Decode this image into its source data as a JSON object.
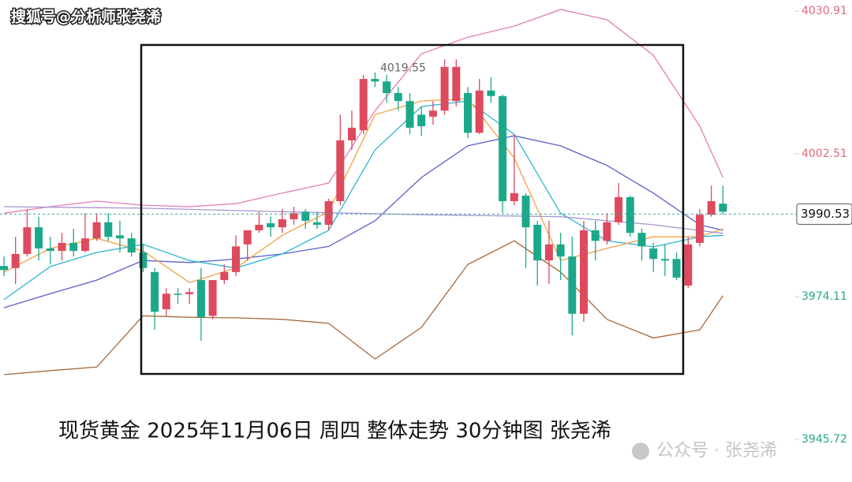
{
  "chart_data": {
    "type": "candlestick",
    "title": "搜狐号@分析师张尧浠",
    "caption": "现货黄金 2025年11月06日 周四 整体走势 30分钟图 张尧浠",
    "watermark": "公众号 · 张尧浠",
    "ylim": [
      3937.25,
      4033.1
    ],
    "yticks": [
      4030.91,
      4002.51,
      3974.11,
      3945.72
    ],
    "last_price": 3990.53,
    "max_marker": 4019.55,
    "up_color": "#dd4a5e",
    "down_color": "#1ba88a",
    "open": [
      3980.2,
      3979.8,
      3982.6,
      3987.9,
      3983.7,
      3983.2,
      3984.8,
      3983.2,
      3985.7,
      3988.9,
      3986.3,
      3985.7,
      3982.9,
      3979.0,
      3971.6,
      3974.7,
      3974.6,
      3977.4,
      3970.3,
      3977.4,
      3979.0,
      3984.5,
      3987.3,
      3988.7,
      3987.9,
      3989.5,
      3991.0,
      3988.9,
      3988.4,
      3993.1,
      4005.2,
      4007.2,
      4017.4,
      4016.9,
      4014.6,
      4013.0,
      4010.3,
      4009.9,
      4011.1,
      4013.0,
      4014.6,
      4006.7,
      4015.1,
      4014.0,
      3993.1,
      3994.2,
      3988.4,
      3981.3,
      3984.5,
      3982.1,
      3970.7,
      3987.3,
      3985.2,
      3988.9,
      3993.9,
      3986.8,
      3983.7,
      3981.6,
      3981.6,
      3976.3,
      3984.8,
      3990.4,
      3992.6
    ],
    "high": [
      3982.1,
      3986.0,
      3991.5,
      3990.0,
      3986.0,
      3986.8,
      3987.6,
      3990.7,
      3990.7,
      3990.7,
      3989.2,
      3986.8,
      3984.5,
      3979.8,
      3975.8,
      3975.8,
      3975.8,
      3979.8,
      3977.4,
      3980.5,
      3986.3,
      3987.3,
      3991.0,
      3990.0,
      3991.5,
      3992.0,
      3991.5,
      3991.0,
      3993.6,
      4010.3,
      4011.1,
      4018.2,
      4018.7,
      4018.2,
      4015.8,
      4014.6,
      4011.9,
      4013.0,
      4021.3,
      4021.3,
      4015.8,
      4017.4,
      4017.7,
      4014.3,
      4006.4,
      3994.7,
      3989.2,
      3989.2,
      3986.8,
      3986.0,
      3989.2,
      3989.2,
      3990.7,
      3996.7,
      3994.2,
      3987.6,
      3984.8,
      3984.5,
      3982.9,
      3986.0,
      3991.5,
      3996.2,
      3996.2
    ],
    "low": [
      3978.2,
      3976.6,
      3982.1,
      3981.3,
      3980.5,
      3981.3,
      3982.1,
      3982.9,
      3985.2,
      3985.2,
      3982.9,
      3982.1,
      3979.0,
      3967.5,
      3970.3,
      3972.7,
      3972.7,
      3965.3,
      3969.6,
      3976.6,
      3978.2,
      3981.3,
      3986.8,
      3986.0,
      3986.8,
      3988.4,
      3987.6,
      3987.6,
      3987.3,
      3992.3,
      4003.3,
      4006.4,
      4015.8,
      4012.7,
      4011.1,
      4006.4,
      4006.1,
      4008.3,
      4010.3,
      4011.9,
      4005.6,
      4006.4,
      4012.7,
      3990.7,
      3992.3,
      3979.8,
      3976.3,
      3976.6,
      3977.4,
      3966.4,
      3969.1,
      3981.3,
      3984.5,
      3988.4,
      3986.0,
      3981.3,
      3979.0,
      3978.2,
      3977.4,
      3975.8,
      3984.1,
      3990.0,
      3990.4
    ],
    "close": [
      3979.4,
      3982.6,
      3987.9,
      3983.7,
      3983.2,
      3984.8,
      3983.2,
      3985.7,
      3988.9,
      3986.0,
      3985.7,
      3982.9,
      3979.8,
      3971.1,
      3974.7,
      3974.6,
      3975.0,
      3970.0,
      3977.4,
      3979.0,
      3984.1,
      3987.3,
      3988.4,
      3987.9,
      3989.5,
      3990.7,
      3989.2,
      3988.4,
      3993.1,
      4005.2,
      4007.7,
      4017.4,
      4016.9,
      4014.6,
      4013.0,
      4007.7,
      4008.0,
      4011.1,
      4019.8,
      4019.8,
      4006.7,
      4015.1,
      4014.0,
      3993.1,
      3994.7,
      3987.9,
      3981.3,
      3984.5,
      3982.1,
      3970.7,
      3987.3,
      3985.2,
      3988.9,
      3993.9,
      3986.8,
      3984.1,
      3981.6,
      3981.3,
      3977.9,
      3984.5,
      3990.4,
      3993.1,
      3991.0
    ],
    "series": [
      {
        "color": "#e27db3",
        "x": [
          0,
          4,
          8,
          12,
          16,
          20,
          24,
          28,
          32,
          36,
          40,
          44,
          48,
          52,
          56,
          60,
          62
        ],
        "values": [
          3990.7,
          3992.0,
          3993.1,
          3992.3,
          3992.0,
          3992.6,
          3994.7,
          3996.7,
          4011.1,
          4022.4,
          4025.7,
          4027.9,
          4031.2,
          4029.2,
          4022.1,
          4008.0,
          3997.8
        ]
      },
      {
        "color": "#a8683a",
        "x": [
          0,
          4,
          8,
          12,
          16,
          20,
          24,
          28,
          32,
          36,
          40,
          44,
          48,
          52,
          56,
          60,
          62
        ],
        "values": [
          3958.6,
          3959.4,
          3960.1,
          3970.3,
          3970.0,
          3969.9,
          3969.6,
          3968.8,
          3961.7,
          3968.0,
          3980.5,
          3985.2,
          3979.0,
          3969.6,
          3965.9,
          3967.5,
          3974.3
        ]
      },
      {
        "color": "#5b5fcc",
        "x": [
          0,
          4,
          8,
          12,
          16,
          20,
          24,
          28,
          32,
          36,
          40,
          44,
          48,
          52,
          56,
          60,
          62
        ],
        "values": [
          3971.9,
          3974.7,
          3977.4,
          3981.3,
          3980.9,
          3981.6,
          3982.6,
          3984.1,
          3989.2,
          3997.8,
          4004.1,
          4006.1,
          4004.1,
          4000.2,
          3994.7,
          3988.4,
          3987.3
        ]
      },
      {
        "color": "#2db6d2",
        "x": [
          0,
          4,
          8,
          12,
          16,
          20,
          24,
          28,
          32,
          36,
          40,
          44,
          48,
          52,
          56,
          60,
          62
        ],
        "values": [
          3973.5,
          3980.1,
          3982.9,
          3984.5,
          3981.3,
          3979.8,
          3982.6,
          3987.3,
          4003.3,
          4011.9,
          4013.0,
          4006.4,
          3990.7,
          3985.2,
          3984.0,
          3986.0,
          3986.3
        ]
      },
      {
        "color": "#f0a445",
        "x": [
          0,
          4,
          8,
          12,
          16,
          20,
          24,
          28,
          32,
          36,
          40,
          44,
          48,
          52,
          56,
          60,
          62
        ],
        "values": [
          3979.0,
          3983.7,
          3985.7,
          3983.2,
          3976.9,
          3979.8,
          3986.3,
          3991.0,
          4010.3,
          4013.0,
          4013.5,
          4001.7,
          3981.3,
          3983.7,
          3986.0,
          3986.0,
          3987.6
        ]
      },
      {
        "color": "#a596d0",
        "x": [
          0,
          12,
          24,
          36,
          48,
          56,
          62
        ],
        "values": [
          3992.0,
          3991.7,
          3991.0,
          3990.4,
          3990.0,
          3988.4,
          3986.7
        ]
      }
    ]
  }
}
